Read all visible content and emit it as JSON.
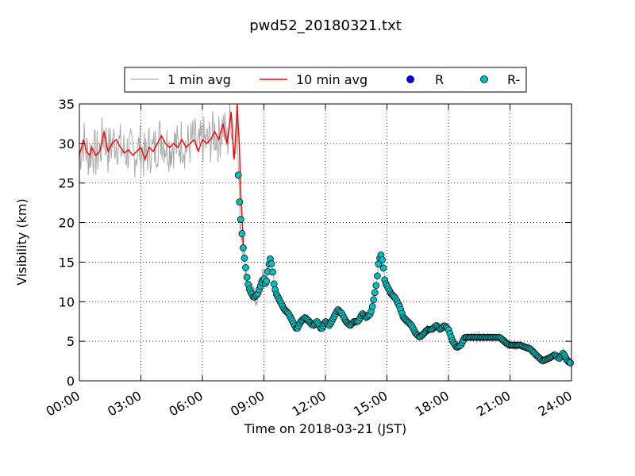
{
  "chart_data": {
    "type": "line",
    "title": "pwd52_20180321.txt",
    "xlabel": "Time on 2018-03-21 (JST)",
    "ylabel": "Visibility (km)",
    "xlim": [
      0,
      24
    ],
    "ylim": [
      0,
      35
    ],
    "x_ticks": [
      0,
      3,
      6,
      9,
      12,
      15,
      18,
      21,
      24
    ],
    "x_tick_labels": [
      "00:00",
      "03:00",
      "06:00",
      "09:00",
      "12:00",
      "15:00",
      "18:00",
      "21:00",
      "24:00"
    ],
    "y_ticks": [
      0,
      5,
      10,
      15,
      20,
      25,
      30,
      35
    ],
    "y_tick_labels": [
      "0",
      "5",
      "10",
      "15",
      "20",
      "25",
      "30",
      "35"
    ],
    "grid": true,
    "legend_position": "top-center",
    "legend": [
      {
        "label": "1 min avg",
        "kind": "line",
        "color": "#aaaaaa"
      },
      {
        "label": "10 min avg",
        "kind": "line",
        "color": "#ff0000"
      },
      {
        "label": "R",
        "kind": "marker",
        "color": "#0000ff"
      },
      {
        "label": "R-",
        "kind": "marker",
        "color": "#00bfbf"
      }
    ],
    "series": [
      {
        "name": "10 min avg",
        "color": "#ff0000",
        "x": [
          0.0,
          0.2,
          0.35,
          0.5,
          0.6,
          0.8,
          1.0,
          1.2,
          1.4,
          1.6,
          1.8,
          2.0,
          2.2,
          2.4,
          2.6,
          2.8,
          3.0,
          3.2,
          3.4,
          3.6,
          3.8,
          4.0,
          4.2,
          4.4,
          4.6,
          4.8,
          5.0,
          5.2,
          5.4,
          5.6,
          5.8,
          6.0,
          6.2,
          6.4,
          6.6,
          6.8,
          7.0,
          7.2,
          7.4,
          7.55,
          7.6,
          7.7,
          7.75,
          7.8,
          7.85,
          7.9,
          7.95,
          8.0
        ],
        "values": [
          28.5,
          30.5,
          29.0,
          28.5,
          29.5,
          28.5,
          29.0,
          31.5,
          29.0,
          30.0,
          30.5,
          29.5,
          28.8,
          29.2,
          28.5,
          29.0,
          29.5,
          28.0,
          29.5,
          29.0,
          30.0,
          31.0,
          30.0,
          29.5,
          30.0,
          29.5,
          30.5,
          29.5,
          30.0,
          30.5,
          29.0,
          30.5,
          30.0,
          30.5,
          31.5,
          30.5,
          32.5,
          30.0,
          34.0,
          28.0,
          30.0,
          35.0,
          32.0,
          30.0,
          25.0,
          22.0,
          20.0,
          16.5
        ]
      },
      {
        "name": "R-",
        "color": "#00bfbf",
        "x": [
          7.75,
          7.8,
          7.85,
          7.9,
          7.95,
          8.0,
          8.1,
          8.2,
          8.3,
          8.5,
          8.7,
          8.9,
          9.0,
          9.1,
          9.2,
          9.3,
          9.4,
          9.5,
          9.6,
          9.8,
          10.0,
          10.2,
          10.4,
          10.6,
          10.8,
          11.0,
          11.2,
          11.4,
          11.6,
          11.8,
          12.0,
          12.2,
          12.4,
          12.6,
          12.8,
          13.0,
          13.2,
          13.4,
          13.6,
          13.8,
          14.0,
          14.2,
          14.3,
          14.4,
          14.5,
          14.6,
          14.7,
          14.8,
          14.9,
          15.0,
          15.2,
          15.4,
          15.6,
          15.8,
          16.0,
          16.2,
          16.4,
          16.6,
          16.8,
          17.0,
          17.2,
          17.4,
          17.6,
          17.8,
          18.0,
          18.2,
          18.4,
          18.6,
          18.8,
          19.0,
          19.5,
          20.0,
          20.5,
          20.8,
          21.0,
          21.5,
          22.0,
          22.3,
          22.6,
          23.0,
          23.2,
          23.4,
          23.6,
          23.8,
          24.0
        ],
        "values": [
          26.0,
          23.0,
          21.0,
          19.5,
          18.0,
          16.5,
          14.5,
          12.5,
          11.5,
          10.5,
          11.0,
          12.5,
          13.0,
          12.0,
          14.0,
          15.5,
          14.5,
          12.0,
          11.0,
          10.0,
          9.0,
          8.5,
          7.5,
          6.5,
          7.5,
          8.0,
          7.5,
          7.0,
          7.5,
          6.5,
          7.5,
          7.0,
          8.0,
          9.0,
          8.5,
          7.5,
          7.0,
          7.5,
          7.5,
          8.5,
          8.0,
          8.5,
          9.5,
          11.0,
          12.5,
          15.0,
          16.0,
          15.0,
          12.5,
          12.0,
          11.0,
          10.5,
          9.5,
          8.0,
          7.5,
          7.0,
          6.0,
          5.5,
          6.0,
          6.5,
          6.5,
          7.0,
          6.5,
          7.0,
          6.5,
          5.0,
          4.2,
          4.5,
          5.5,
          5.5,
          5.5,
          5.5,
          5.5,
          4.8,
          4.5,
          4.5,
          4.0,
          3.2,
          2.5,
          3.0,
          3.3,
          2.8,
          3.5,
          2.5,
          2.2
        ]
      }
    ],
    "gray_series_name": "1 min avg",
    "gray_series_color": "#aaaaaa"
  }
}
